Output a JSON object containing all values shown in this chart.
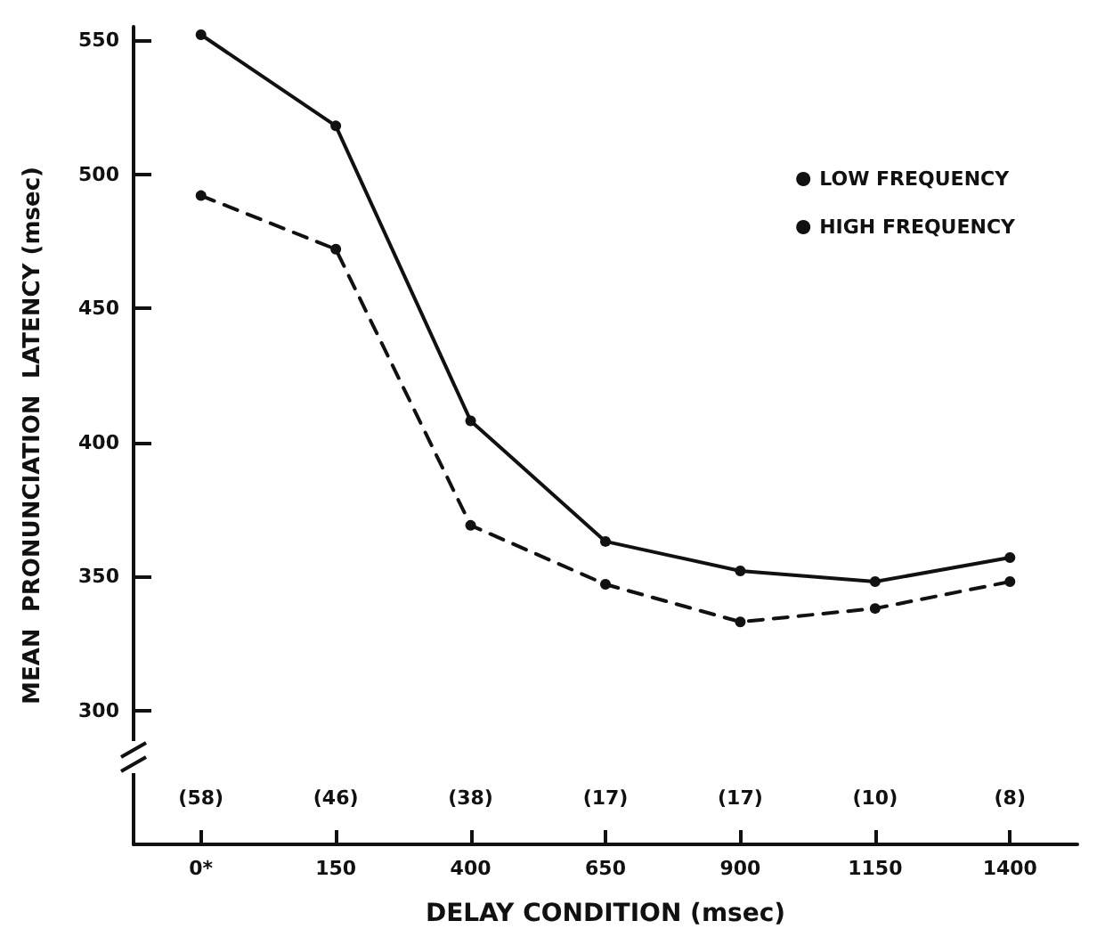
{
  "chart_data": {
    "type": "line",
    "xlabel": "DELAY CONDITION (msec)",
    "ylabel": "MEAN  PRONUNCIATION  LATENCY (msec)",
    "categories": [
      "0*",
      "150",
      "400",
      "650",
      "900",
      "1150",
      "1400"
    ],
    "series": [
      {
        "name": "LOW FREQUENCY",
        "color": "#111111",
        "line_style": "solid",
        "values": [
          552,
          518,
          408,
          363,
          352,
          348,
          357
        ]
      },
      {
        "name": "HIGH FREQUENCY",
        "color": "#111111",
        "line_style": "dashed",
        "values": [
          492,
          472,
          369,
          347,
          333,
          338,
          348
        ]
      }
    ],
    "ylim": [
      250,
      555
    ],
    "yticks": [
      300,
      350,
      400,
      450,
      500,
      550
    ],
    "annotations": [
      "(58)",
      "(46)",
      "(38)",
      "(17)",
      "(17)",
      "(10)",
      "(8)"
    ],
    "marker": "circle",
    "legend": "top right",
    "grid": false
  }
}
